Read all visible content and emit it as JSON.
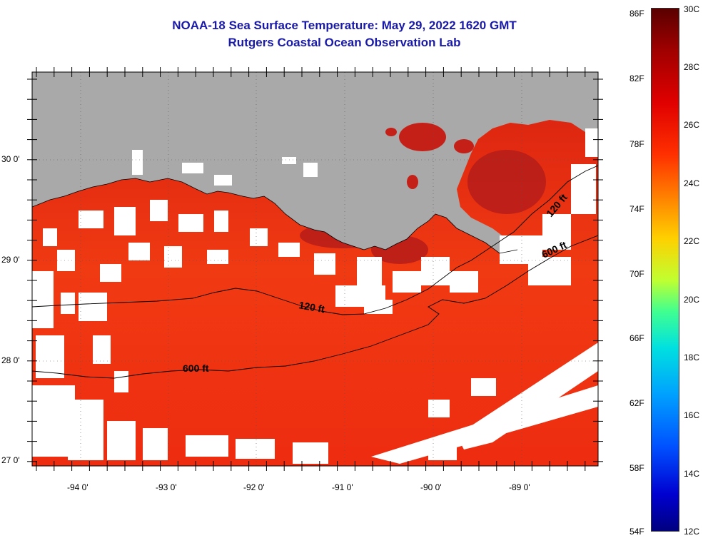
{
  "title": "NOAA-18 Sea Surface Temperature:  May 29, 2022 1620 GMT",
  "subtitle": "Rutgers Coastal Ocean Observation Lab",
  "lat_labels": [
    "30 0'",
    "29 0'",
    "28 0'",
    "27 0'"
  ],
  "lon_labels": [
    "-94 0'",
    "-93 0'",
    "-92 0'",
    "-91 0'",
    "-90 0'",
    "-89 0'"
  ],
  "contours": [
    {
      "label": "120 ft"
    },
    {
      "label": "600 ft"
    },
    {
      "label": "120 ft"
    },
    {
      "label": "600 ft"
    }
  ],
  "colorbar": {
    "f_labels": [
      "86F",
      "82F",
      "78F",
      "74F",
      "70F",
      "66F",
      "62F",
      "58F",
      "54F"
    ],
    "c_labels": [
      "30C",
      "28C",
      "26C",
      "24C",
      "22C",
      "20C",
      "18C",
      "16C",
      "14C",
      "12C"
    ]
  },
  "colors": {
    "land": "#a9a9a9",
    "clouds": "#ffffff",
    "sea_dominant": "#ee2a10",
    "sea_warm": "#a81818",
    "title": "#1a1aa8"
  }
}
